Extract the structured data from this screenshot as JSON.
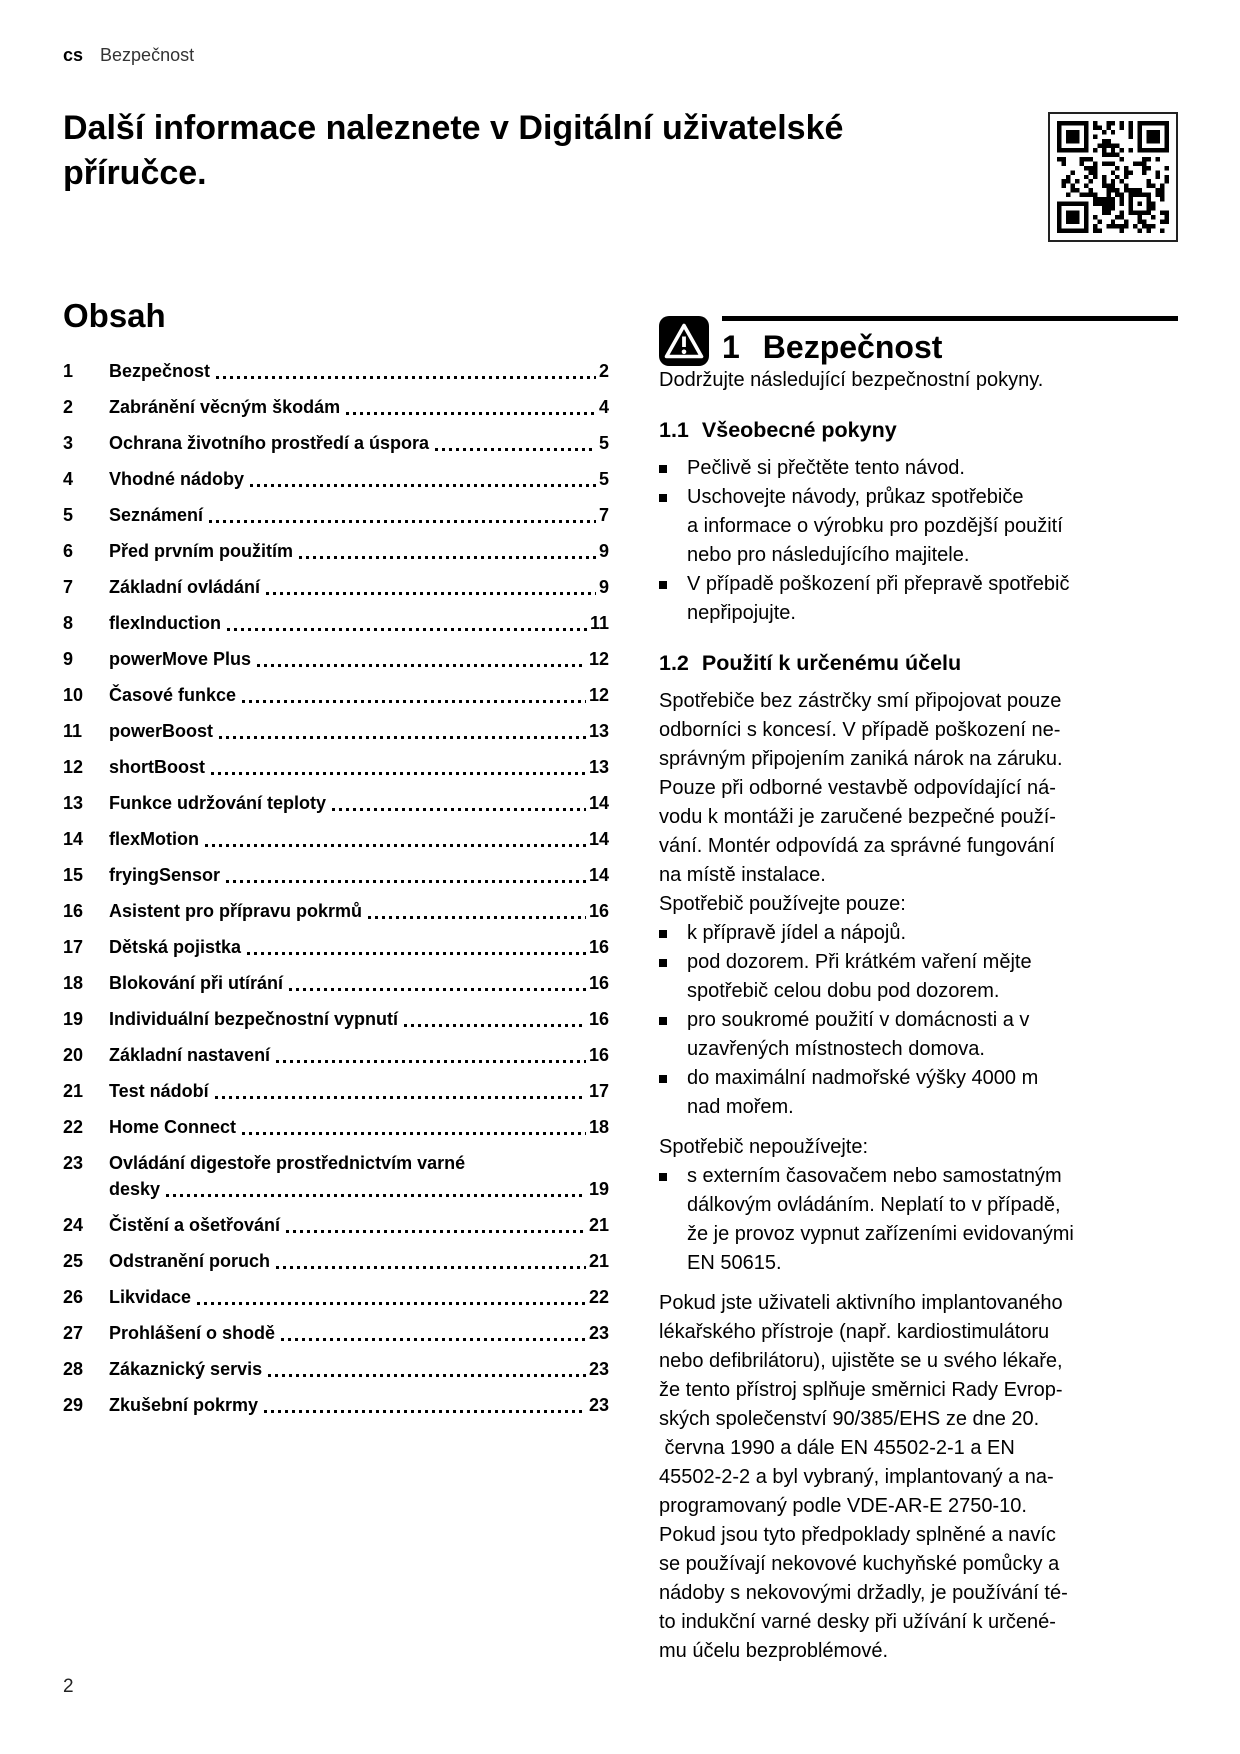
{
  "page": {
    "lang_tag": "cs",
    "header_section": "Bezpečnost",
    "page_number": "2"
  },
  "intro": {
    "title": "Další informace naleznete v Digitální uživatelské\npříručce."
  },
  "icons": {
    "qr": "qr-code",
    "warning": "warning-triangle-icon"
  },
  "toc": {
    "heading": "Obsah",
    "items": [
      {
        "num": "1",
        "title": "Bezpečnost",
        "page": "2"
      },
      {
        "num": "2",
        "title": "Zabránění věcným škodám",
        "page": "4"
      },
      {
        "num": "3",
        "title": "Ochrana životního prostředí a úspora",
        "page": "5"
      },
      {
        "num": "4",
        "title": "Vhodné nádoby",
        "page": "5"
      },
      {
        "num": "5",
        "title": "Seznámení",
        "page": "7"
      },
      {
        "num": "6",
        "title": "Před prvním použitím",
        "page": "9"
      },
      {
        "num": "7",
        "title": "Základní ovládání",
        "page": "9"
      },
      {
        "num": "8",
        "title": "flexInduction",
        "page": "11"
      },
      {
        "num": "9",
        "title": "powerMove Plus",
        "page": "12"
      },
      {
        "num": "10",
        "title": "Časové funkce",
        "page": "12"
      },
      {
        "num": "11",
        "title": "powerBoost",
        "page": "13"
      },
      {
        "num": "12",
        "title": "shortBoost",
        "page": "13"
      },
      {
        "num": "13",
        "title": "Funkce udržování teploty",
        "page": "14"
      },
      {
        "num": "14",
        "title": "flexMotion",
        "page": "14"
      },
      {
        "num": "15",
        "title": "fryingSensor",
        "page": "14"
      },
      {
        "num": "16",
        "title": "Asistent pro přípravu pokrmů",
        "page": "16"
      },
      {
        "num": "17",
        "title": "Dětská pojistka",
        "page": "16"
      },
      {
        "num": "18",
        "title": "Blokování při utírání",
        "page": "16"
      },
      {
        "num": "19",
        "title": "Individuální bezpečnostní vypnutí",
        "page": "16"
      },
      {
        "num": "20",
        "title": "Základní nastavení",
        "page": "16"
      },
      {
        "num": "21",
        "title": "Test nádobí",
        "page": "17"
      },
      {
        "num": "22",
        "title": "Home Connect",
        "page": "18"
      },
      {
        "num": "23",
        "title": "Ovládání digestoře prostřednictvím varné",
        "title2": "desky",
        "page": "19"
      },
      {
        "num": "24",
        "title": "Čistění a ošetřování",
        "page": "21"
      },
      {
        "num": "25",
        "title": "Odstranění poruch",
        "page": "21"
      },
      {
        "num": "26",
        "title": "Likvidace",
        "page": "22"
      },
      {
        "num": "27",
        "title": "Prohlášení o shodě",
        "page": "23"
      },
      {
        "num": "28",
        "title": "Zákaznický servis",
        "page": "23"
      },
      {
        "num": "29",
        "title": "Zkušební pokrmy",
        "page": "23"
      }
    ]
  },
  "safety": {
    "chapter_number": "1",
    "chapter_title": "Bezpečnost",
    "intro": "Dodržujte následující bezpečnostní pokyny.",
    "sections": [
      {
        "num": "1.1",
        "title": "Všeobecné pokyny",
        "blocks": [
          {
            "type": "bullets",
            "items": [
              "Pečlivě si přečtěte tento návod.",
              "Uschovejte návody, průkaz spotřebiče\na informace o výrobku pro pozdější použití\nnebo pro následujícího majitele.",
              "V případě poškození při přepravě spotřebič\nnepřipojujte."
            ]
          }
        ]
      },
      {
        "num": "1.2",
        "title": "Použití k určenému účelu",
        "blocks": [
          {
            "type": "p",
            "text": "Spotřebiče bez zástrčky smí připojovat pouze\nodborníci s koncesí. V případě poškození ne-\nsprávným připojením zaniká nárok na záruku.\nPouze při odborné vestavbě odpovídající ná-\nvodu k montáži je zaručené bezpečné použí-\nvání. Montér odpovídá za správné fungování\nna místě instalace."
          },
          {
            "type": "p",
            "text": "Spotřebič používejte pouze:"
          },
          {
            "type": "bullets",
            "items": [
              "k přípravě jídel a nápojů.",
              "pod dozorem. Při krátkém vaření mějte\nspotřebič celou dobu pod dozorem.",
              "pro soukromé použití v domácnosti a v\nuzavřených místnostech domova.",
              "do maximální nadmořské výšky 4000 m\nnad mořem."
            ]
          },
          {
            "type": "p",
            "text": "Spotřebič nepoužívejte:"
          },
          {
            "type": "bullets",
            "items": [
              "s externím časovačem nebo samostatným\ndálkovým ovládáním. Neplatí to v případě,\nže je provoz vypnut zařízeními evidovanými\nEN 50615."
            ]
          },
          {
            "type": "p",
            "text": "Pokud jste uživateli aktivního implantovaného\nlékařského přístroje (např. kardiostimulátoru\nnebo defibrilátoru), ujistěte se u svého lékaře,\nže tento přístroj splňuje směrnici Rady Evrop-\nských společenství 90/385/EHS ze dne 20.\n června 1990 a dále EN 45502-2-1 a EN\n45502-2-2 a byl vybraný, implantovaný a na-\nprogramovaný podle VDE-AR-E 2750-10.\nPokud jsou tyto předpoklady splněné a navíc\nse používají nekovové kuchyňské pomůcky a\nnádoby s nekovovými držadly, je používání té-\nto indukční varné desky při užívání k určené-\nmu účelu bezproblémové."
          }
        ]
      }
    ]
  }
}
